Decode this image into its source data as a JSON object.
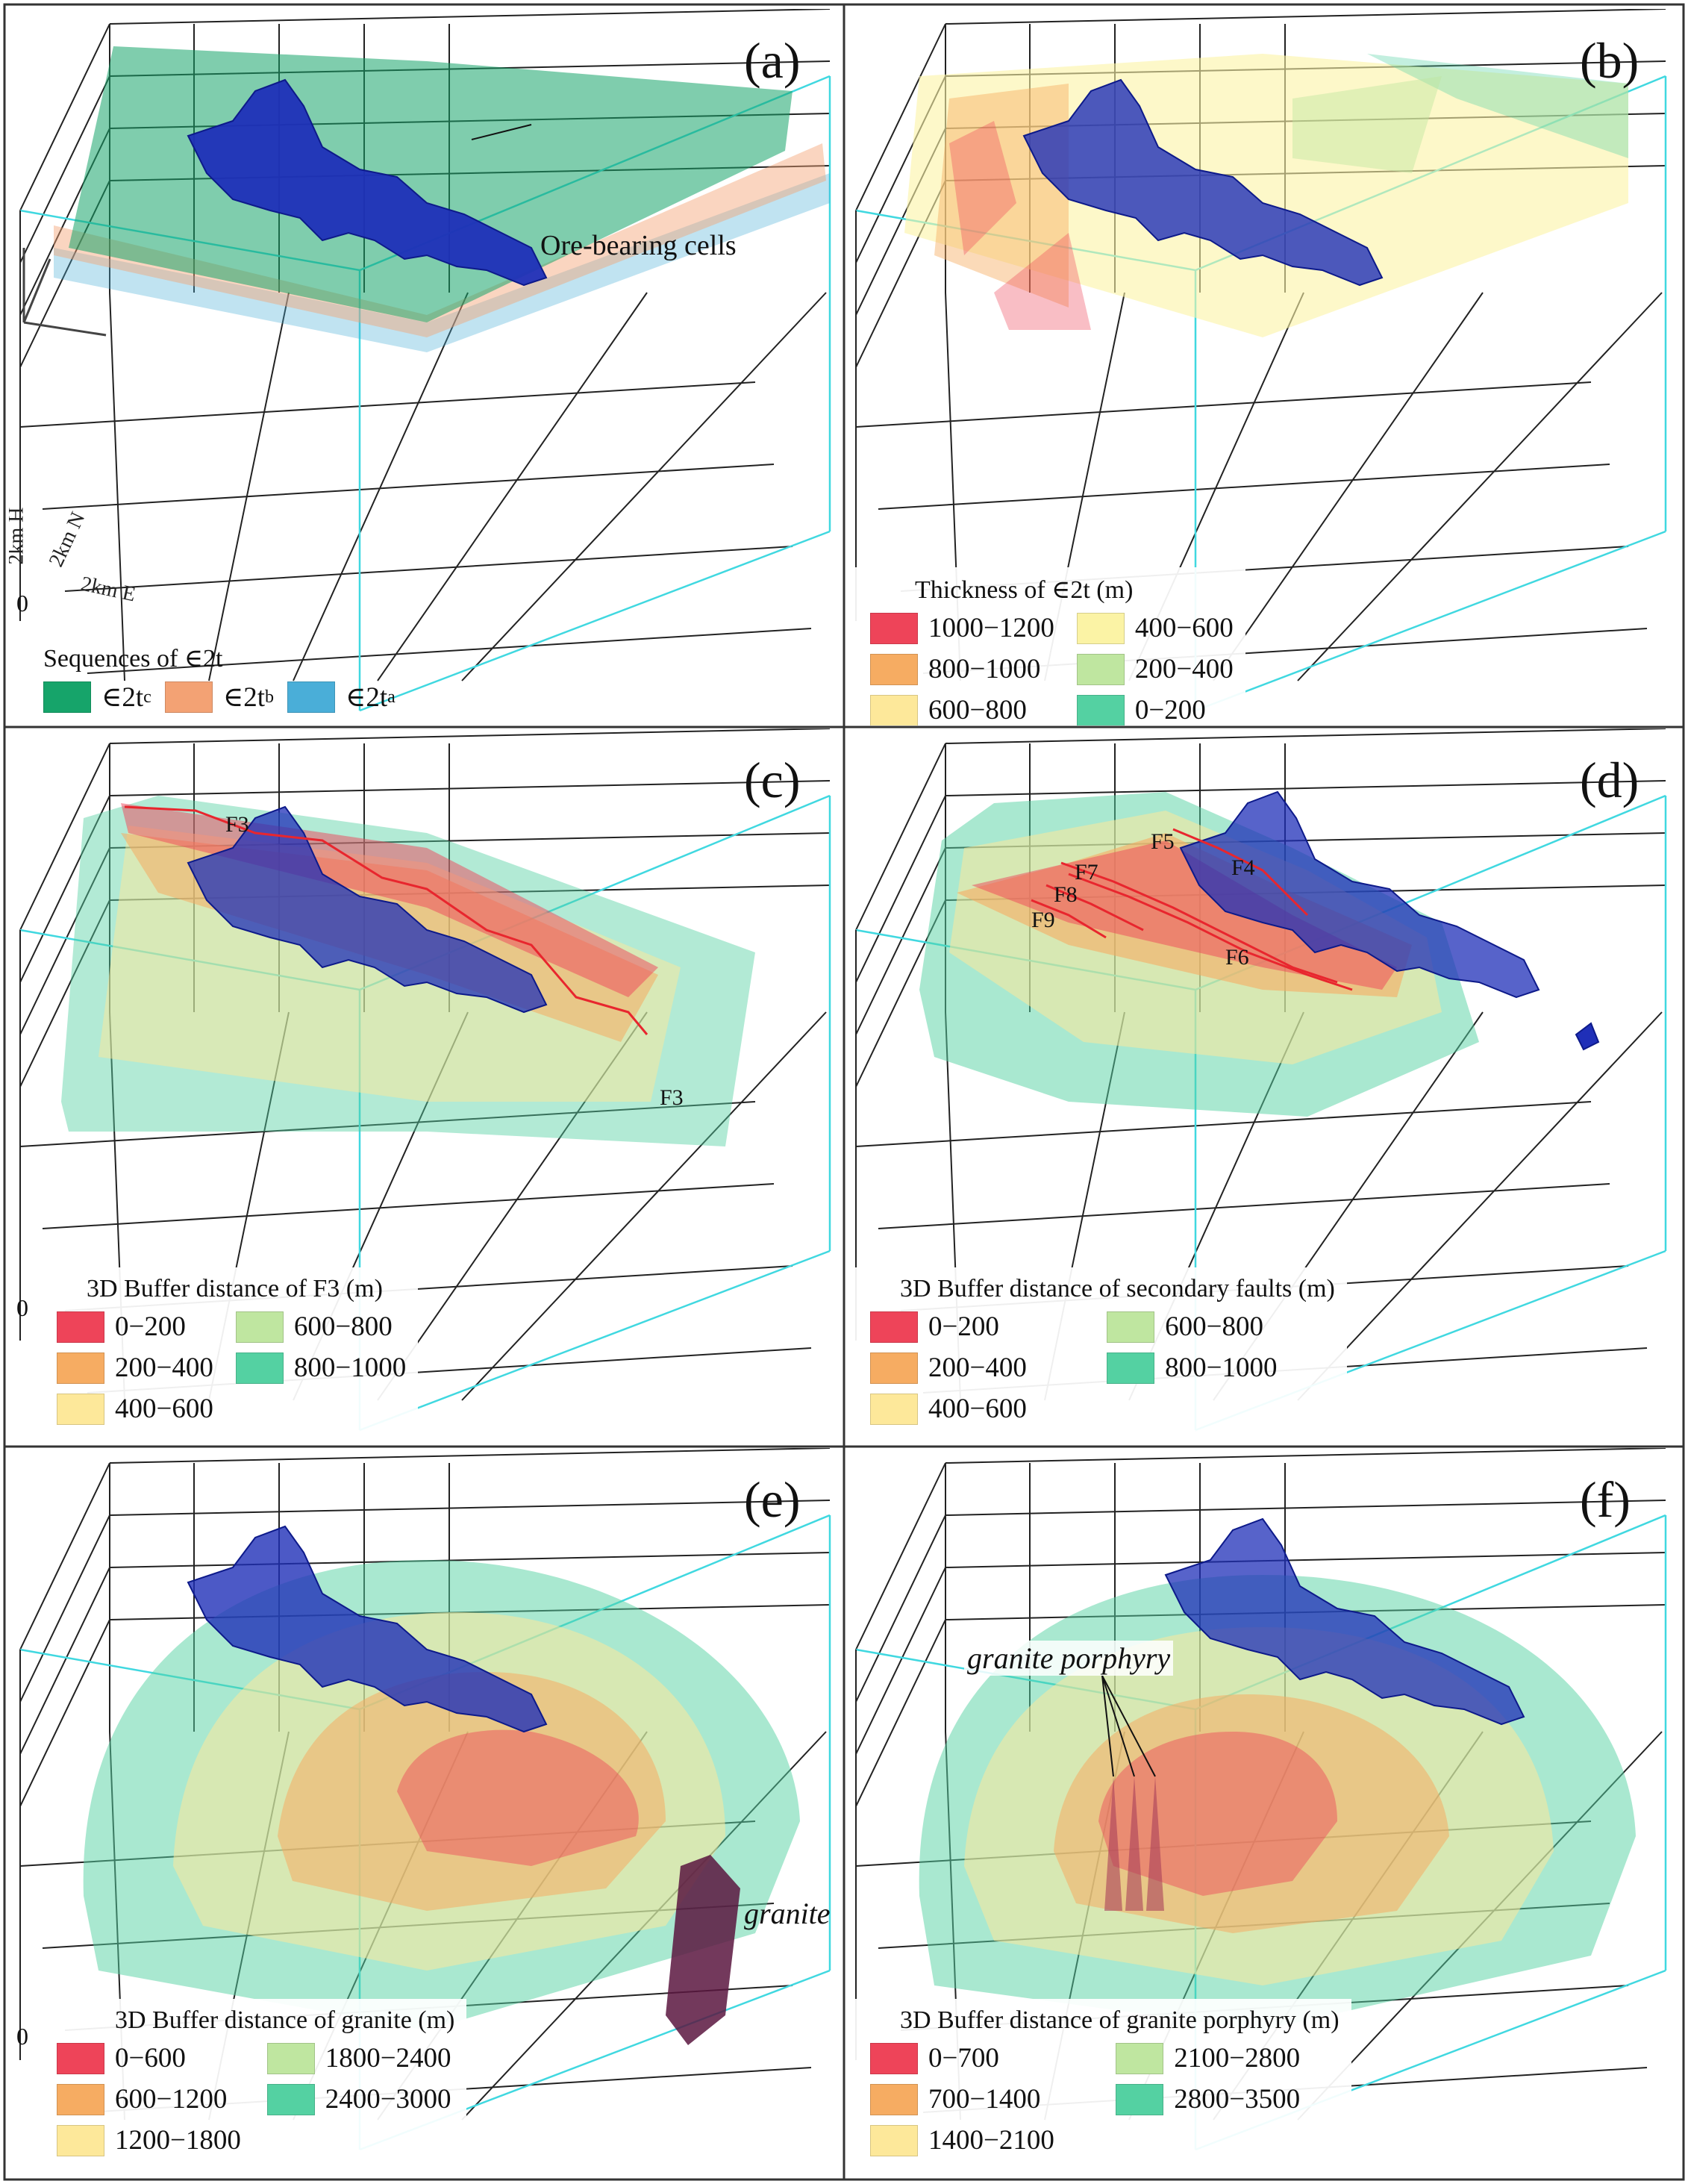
{
  "panels": {
    "a": {
      "label": "(a)",
      "ore_annotation": "Ore-bearing cells",
      "axis_origin": "0",
      "axis_h": "2km H",
      "axis_n": "2km N",
      "axis_e": "2km E",
      "legend": {
        "title": "Sequences of ∈2t",
        "items": [
          {
            "prefix": "∈2t",
            "sup": "c",
            "color": "#16a46a"
          },
          {
            "prefix": "∈2t",
            "sup": "b",
            "color": "#f3a274"
          },
          {
            "prefix": "∈2t",
            "sup": "a",
            "color": "#4aaed8"
          }
        ]
      }
    },
    "b": {
      "label": "(b)",
      "legend": {
        "title": "Thickness of ∈2t (m)",
        "items": [
          {
            "text": "1000−1200",
            "color": "#ee4459"
          },
          {
            "text": "400−600",
            "color": "#fbf3a5"
          },
          {
            "text": "800−1000",
            "color": "#f6ac62"
          },
          {
            "text": "200−400",
            "color": "#bfe6a0"
          },
          {
            "text": "600−800",
            "color": "#fde89a"
          },
          {
            "text": "0−200",
            "color": "#54d1a2"
          }
        ]
      }
    },
    "c": {
      "label": "(c)",
      "axis_origin": "0",
      "fault_labels": [
        "F3",
        "F3"
      ],
      "legend": {
        "title": "3D Buffer distance of F3 (m)",
        "items": [
          {
            "text": "0−200",
            "color": "#ee4459"
          },
          {
            "text": "600−800",
            "color": "#bfe6a0"
          },
          {
            "text": "200−400",
            "color": "#f6ac62"
          },
          {
            "text": "800−1000",
            "color": "#54d1a2"
          },
          {
            "text": "400−600",
            "color": "#fde89a"
          }
        ]
      }
    },
    "d": {
      "label": "(d)",
      "fault_labels": [
        "F5",
        "F4",
        "F7",
        "F8",
        "F9",
        "F6"
      ],
      "legend": {
        "title": "3D Buffer distance of secondary faults (m)",
        "items": [
          {
            "text": "0−200",
            "color": "#ee4459"
          },
          {
            "text": "600−800",
            "color": "#bfe6a0"
          },
          {
            "text": "200−400",
            "color": "#f6ac62"
          },
          {
            "text": "800−1000",
            "color": "#54d1a2"
          },
          {
            "text": "400−600",
            "color": "#fde89a"
          }
        ]
      }
    },
    "e": {
      "label": "(e)",
      "axis_origin": "0",
      "annotation": "granite",
      "legend": {
        "title": "3D Buffer distance of granite (m)",
        "items": [
          {
            "text": "0−600",
            "color": "#ee4459"
          },
          {
            "text": "1800−2400",
            "color": "#bfe6a0"
          },
          {
            "text": "600−1200",
            "color": "#f6ac62"
          },
          {
            "text": "2400−3000",
            "color": "#54d1a2"
          },
          {
            "text": "1200−1800",
            "color": "#fde89a"
          }
        ]
      }
    },
    "f": {
      "label": "(f)",
      "annotation": "granite porphyry",
      "legend": {
        "title": "3D Buffer distance of granite porphyry (m)",
        "items": [
          {
            "text": "0−700",
            "color": "#ee4459"
          },
          {
            "text": "2100−2800",
            "color": "#bfe6a0"
          },
          {
            "text": "700−1400",
            "color": "#f6ac62"
          },
          {
            "text": "2800−3500",
            "color": "#54d1a2"
          },
          {
            "text": "1400−2100",
            "color": "#fde89a"
          }
        ]
      }
    }
  },
  "colors": {
    "ore": "#1f2fb8",
    "fault_line": "#e8262e",
    "box_line": "#222222",
    "box_front": "#40d8e0"
  }
}
